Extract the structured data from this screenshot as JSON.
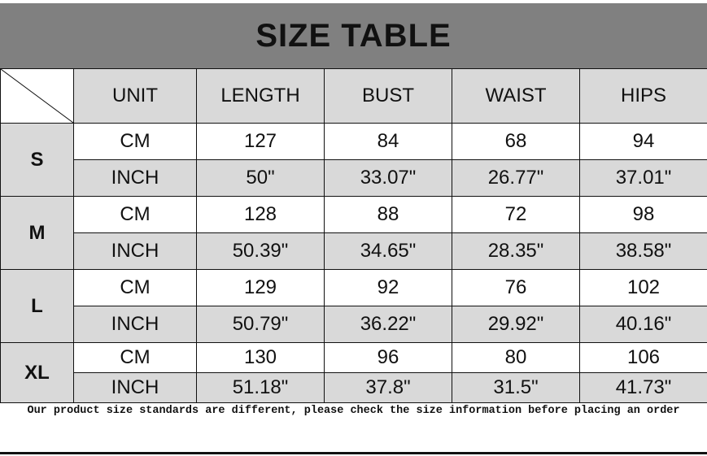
{
  "title": "SIZE TABLE",
  "columns": [
    "UNIT",
    "LENGTH",
    "BUST",
    "WAIST",
    "HIPS"
  ],
  "sizes": [
    {
      "size": "S",
      "rows": [
        [
          "CM",
          "127",
          "84",
          "68",
          "94"
        ],
        [
          "INCH",
          "50\"",
          "33.07\"",
          "26.77\"",
          "37.01\""
        ]
      ]
    },
    {
      "size": "M",
      "rows": [
        [
          "CM",
          "128",
          "88",
          "72",
          "98"
        ],
        [
          "INCH",
          "50.39\"",
          "34.65\"",
          "28.35\"",
          "38.58\""
        ]
      ]
    },
    {
      "size": "L",
      "rows": [
        [
          "CM",
          "129",
          "92",
          "76",
          "102"
        ],
        [
          "INCH",
          "50.79\"",
          "36.22\"",
          "29.92\"",
          "40.16\""
        ]
      ]
    },
    {
      "size": "XL",
      "rows": [
        [
          "CM",
          "130",
          "96",
          "80",
          "106"
        ],
        [
          "INCH",
          "51.18\"",
          "37.8\"",
          "31.5\"",
          "41.73\""
        ]
      ]
    }
  ],
  "footer": "Our product size standards are different, please check the size information before placing an order",
  "colors": {
    "title_bg": "#808080",
    "header_bg": "#d9d9d9"
  }
}
